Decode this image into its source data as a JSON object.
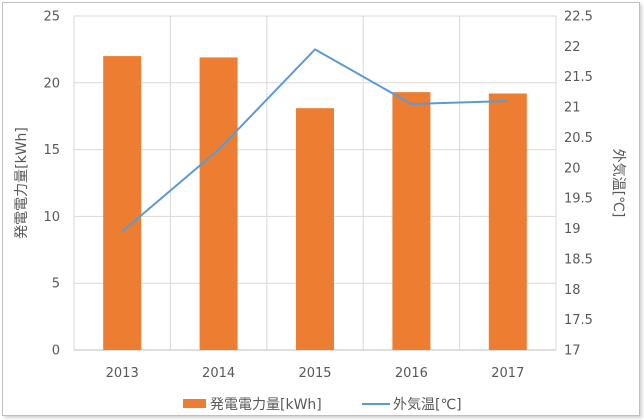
{
  "chart_data": {
    "type": "bar",
    "categories": [
      "2013",
      "2014",
      "2015",
      "2016",
      "2017"
    ],
    "series": [
      {
        "name": "発電電力量[kWh]",
        "type": "bar",
        "axis": "left",
        "color": "#ed7d31",
        "values": [
          22.0,
          21.9,
          18.1,
          19.3,
          19.2
        ]
      },
      {
        "name": "外気温[℃]",
        "type": "line",
        "axis": "right",
        "color": "#5b9bd5",
        "values": [
          18.95,
          20.3,
          21.95,
          21.05,
          21.1
        ]
      }
    ],
    "ylabel": "発電電力量[kWh]",
    "y2label": "外気温[℃]",
    "ylim": [
      0,
      25
    ],
    "yticks": [
      "0",
      "5",
      "10",
      "15",
      "20",
      "25"
    ],
    "y2lim": [
      17,
      22.5
    ],
    "y2ticks": [
      "17",
      "17.5",
      "18",
      "18.5",
      "19",
      "19.5",
      "20",
      "20.5",
      "21",
      "21.5",
      "22",
      "22.5"
    ],
    "grid": true,
    "legend": "bottom"
  }
}
